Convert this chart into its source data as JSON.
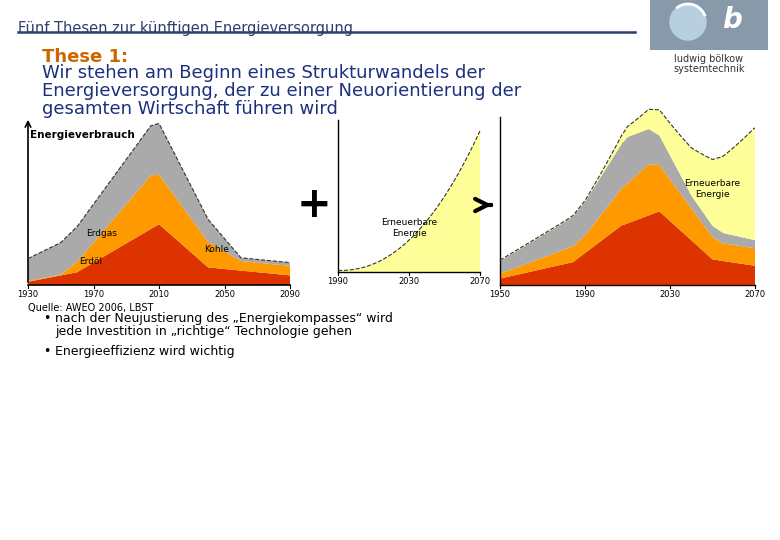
{
  "title": "Fünf Thesen zur künftigen Energieversorgung",
  "these1_label": "These 1:",
  "these1_text_line1": "Wir stehen am Beginn eines Strukturwandels der",
  "these1_text_line2": "Energieversorgung, der zu einer Neuorientierung der",
  "these1_text_line3": "gesamten Wirtschaft führen wird",
  "ylabel_chart": "Energieverbrauch",
  "quelle": "Quelle: AWEO 2006, LBST",
  "bullet1a": "nach der Neujustierung des „Energiekompasses“ wird",
  "bullet1b": "jede Investition in „richtige“ Technologie gehen",
  "bullet2": "Energieeffizienz wird wichtig",
  "logo_text1": "ludwig bölkow",
  "logo_text2": "systemtechnik",
  "chart1_xlabel": [
    "1930",
    "1970",
    "2010",
    "2050",
    "2090"
  ],
  "chart2_xlabel": [
    "1990",
    "2030",
    "2070"
  ],
  "chart3_xlabel": [
    "1950",
    "1990",
    "2030",
    "2070"
  ],
  "label_erdgas": "Erdgas",
  "label_erdoel": "Erdöl",
  "label_kohle": "Kohle",
  "label_erneuerbare": "Erneuerbare\nEnergie",
  "color_bg": "#ffffff",
  "color_header_line": "#2e3f6e",
  "color_title_text": "#2e3f6e",
  "color_these1": "#cc6600",
  "color_main_text": "#1a3080",
  "color_black": "#000000",
  "color_erdoel": "#dd3300",
  "color_erdgas": "#ff9900",
  "color_kohle": "#aaaaaa",
  "color_renew": "#ffff99",
  "color_logo_bg": "#8899aa"
}
